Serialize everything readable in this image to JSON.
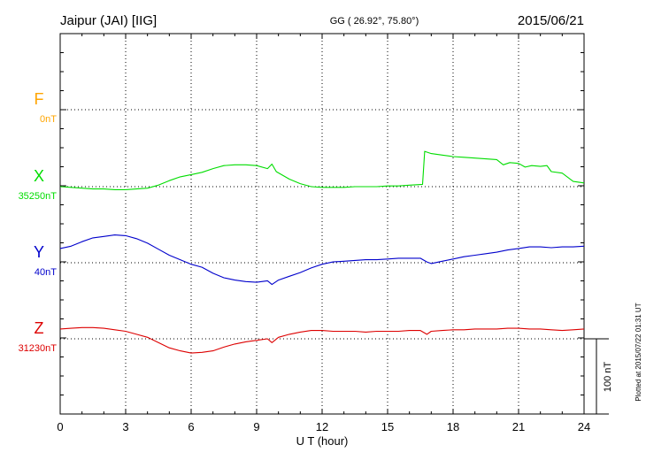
{
  "header": {
    "station": "Jaipur (JAI)  [IIG]",
    "coords": "GG ( 26.92°,  75.80°)",
    "date": "2015/06/21"
  },
  "footer": {
    "plotted": "Plotted at 2015/07/22 01:31  UT",
    "scale_label": "100 nT"
  },
  "chart_data": {
    "type": "line",
    "xlabel": "U T (hour)",
    "xlim": [
      0,
      24
    ],
    "xticks": [
      0,
      3,
      6,
      9,
      12,
      15,
      18,
      21,
      24
    ],
    "scale_bar_nT": 100,
    "grid": true,
    "series": [
      {
        "name": "F",
        "baseline_label": "0nT",
        "color": "#ffa500",
        "points": []
      },
      {
        "name": "X",
        "baseline_label": "35250nT",
        "color": "#00dd00",
        "points": [
          [
            0,
            35250
          ],
          [
            0.5,
            35249
          ],
          [
            1,
            35248
          ],
          [
            1.5,
            35247
          ],
          [
            2,
            35247
          ],
          [
            2.5,
            35246
          ],
          [
            3,
            35246
          ],
          [
            3.5,
            35247
          ],
          [
            4,
            35248
          ],
          [
            4.5,
            35252
          ],
          [
            5,
            35258
          ],
          [
            5.5,
            35263
          ],
          [
            6,
            35266
          ],
          [
            6.5,
            35269
          ],
          [
            7,
            35274
          ],
          [
            7.5,
            35278
          ],
          [
            8,
            35279
          ],
          [
            8.5,
            35279
          ],
          [
            9,
            35278
          ],
          [
            9.5,
            35274
          ],
          [
            9.7,
            35280
          ],
          [
            9.9,
            35270
          ],
          [
            10.5,
            35260
          ],
          [
            11,
            35254
          ],
          [
            11.5,
            35250
          ],
          [
            12,
            35249
          ],
          [
            12.5,
            35249
          ],
          [
            13,
            35249
          ],
          [
            13.5,
            35250
          ],
          [
            14,
            35250
          ],
          [
            14.5,
            35250
          ],
          [
            15,
            35251
          ],
          [
            15.5,
            35251
          ],
          [
            16,
            35252
          ],
          [
            16.6,
            35253
          ],
          [
            16.7,
            35297
          ],
          [
            17,
            35294
          ],
          [
            17.5,
            35292
          ],
          [
            18,
            35290
          ],
          [
            18.5,
            35289
          ],
          [
            19,
            35288
          ],
          [
            19.5,
            35287
          ],
          [
            20,
            35286
          ],
          [
            20.3,
            35279
          ],
          [
            20.6,
            35282
          ],
          [
            21,
            35281
          ],
          [
            21.3,
            35276
          ],
          [
            21.6,
            35278
          ],
          [
            22,
            35277
          ],
          [
            22.3,
            35278
          ],
          [
            22.5,
            35270
          ],
          [
            23,
            35268
          ],
          [
            23.5,
            35257
          ],
          [
            24,
            35255
          ]
        ]
      },
      {
        "name": "Y",
        "baseline_label": "40nT",
        "color": "#0000cc",
        "points": [
          [
            0,
            59
          ],
          [
            0.5,
            62
          ],
          [
            1,
            68
          ],
          [
            1.5,
            73
          ],
          [
            2,
            75
          ],
          [
            2.5,
            77
          ],
          [
            3,
            76
          ],
          [
            3.5,
            72
          ],
          [
            4,
            66
          ],
          [
            4.5,
            58
          ],
          [
            5,
            50
          ],
          [
            5.5,
            44
          ],
          [
            6,
            38
          ],
          [
            6.5,
            34
          ],
          [
            7,
            26
          ],
          [
            7.5,
            20
          ],
          [
            8,
            17
          ],
          [
            8.5,
            15
          ],
          [
            9,
            14
          ],
          [
            9.5,
            16
          ],
          [
            9.7,
            11
          ],
          [
            10,
            17
          ],
          [
            10.5,
            22
          ],
          [
            11,
            27
          ],
          [
            11.5,
            33
          ],
          [
            12,
            38
          ],
          [
            12.5,
            41
          ],
          [
            13,
            42
          ],
          [
            13.5,
            43
          ],
          [
            14,
            44
          ],
          [
            14.5,
            44
          ],
          [
            15,
            45
          ],
          [
            15.5,
            46
          ],
          [
            16,
            46
          ],
          [
            16.5,
            46
          ],
          [
            16.8,
            41
          ],
          [
            17,
            39
          ],
          [
            17.5,
            42
          ],
          [
            18,
            45
          ],
          [
            18.5,
            48
          ],
          [
            19,
            50
          ],
          [
            19.5,
            52
          ],
          [
            20,
            54
          ],
          [
            20.5,
            57
          ],
          [
            21,
            59
          ],
          [
            21.5,
            61
          ],
          [
            22,
            61
          ],
          [
            22.5,
            60
          ],
          [
            23,
            61
          ],
          [
            23.5,
            61
          ],
          [
            24,
            62
          ]
        ]
      },
      {
        "name": "Z",
        "baseline_label": "31230nT",
        "color": "#dd0000",
        "points": [
          [
            0,
            31243
          ],
          [
            0.5,
            31244
          ],
          [
            1,
            31245
          ],
          [
            1.5,
            31245
          ],
          [
            2,
            31244
          ],
          [
            2.5,
            31242
          ],
          [
            3,
            31240
          ],
          [
            3.5,
            31236
          ],
          [
            4,
            31232
          ],
          [
            4.5,
            31225
          ],
          [
            5,
            31218
          ],
          [
            5.5,
            31214
          ],
          [
            6,
            31211
          ],
          [
            6.5,
            31212
          ],
          [
            7,
            31214
          ],
          [
            7.5,
            31219
          ],
          [
            8,
            31223
          ],
          [
            8.5,
            31226
          ],
          [
            9,
            31228
          ],
          [
            9.5,
            31230
          ],
          [
            9.7,
            31225
          ],
          [
            10,
            31232
          ],
          [
            10.5,
            31236
          ],
          [
            11,
            31239
          ],
          [
            11.5,
            31241
          ],
          [
            12,
            31241
          ],
          [
            12.5,
            31240
          ],
          [
            13,
            31240
          ],
          [
            13.5,
            31240
          ],
          [
            14,
            31239
          ],
          [
            14.5,
            31240
          ],
          [
            15,
            31240
          ],
          [
            15.5,
            31240
          ],
          [
            16,
            31241
          ],
          [
            16.5,
            31241
          ],
          [
            16.8,
            31236
          ],
          [
            17,
            31240
          ],
          [
            17.5,
            31241
          ],
          [
            18,
            31242
          ],
          [
            18.5,
            31242
          ],
          [
            19,
            31243
          ],
          [
            19.5,
            31243
          ],
          [
            20,
            31243
          ],
          [
            20.5,
            31244
          ],
          [
            21,
            31244
          ],
          [
            21.5,
            31243
          ],
          [
            22,
            31243
          ],
          [
            22.5,
            31242
          ],
          [
            23,
            31241
          ],
          [
            23.5,
            31242
          ],
          [
            24,
            31243
          ]
        ]
      }
    ]
  }
}
